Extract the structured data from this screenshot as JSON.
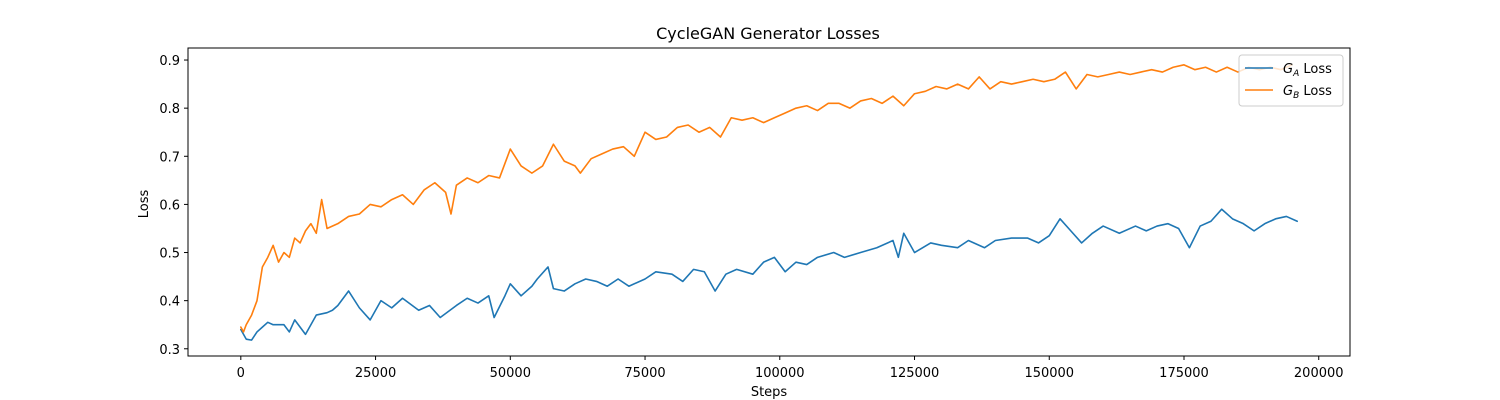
{
  "chart_data": {
    "type": "line",
    "title": "CycleGAN Generator Losses",
    "xlabel": "Steps",
    "ylabel": "Loss",
    "xlim": [
      -9800,
      205800
    ],
    "ylim": [
      0.285,
      0.925
    ],
    "xticks": [
      0,
      25000,
      50000,
      75000,
      100000,
      125000,
      150000,
      175000,
      200000
    ],
    "yticks": [
      0.3,
      0.4,
      0.5,
      0.6,
      0.7,
      0.8,
      0.9
    ],
    "grid": false,
    "legend_position": "upper-right",
    "series": [
      {
        "name": "G_A Loss",
        "legend_base": "G",
        "legend_sub": "A",
        "legend_suffix": " Loss",
        "color": "#1f77b4",
        "points": [
          [
            0,
            0.34
          ],
          [
            1000,
            0.32
          ],
          [
            2000,
            0.318
          ],
          [
            3000,
            0.335
          ],
          [
            4000,
            0.345
          ],
          [
            5000,
            0.355
          ],
          [
            6000,
            0.35
          ],
          [
            8000,
            0.35
          ],
          [
            9000,
            0.335
          ],
          [
            10000,
            0.36
          ],
          [
            12000,
            0.33
          ],
          [
            14000,
            0.37
          ],
          [
            16000,
            0.375
          ],
          [
            17000,
            0.38
          ],
          [
            18000,
            0.39
          ],
          [
            20000,
            0.42
          ],
          [
            22000,
            0.385
          ],
          [
            24000,
            0.36
          ],
          [
            26000,
            0.4
          ],
          [
            28000,
            0.385
          ],
          [
            30000,
            0.405
          ],
          [
            33000,
            0.38
          ],
          [
            35000,
            0.39
          ],
          [
            37000,
            0.365
          ],
          [
            40000,
            0.39
          ],
          [
            42000,
            0.405
          ],
          [
            44000,
            0.395
          ],
          [
            46000,
            0.41
          ],
          [
            47000,
            0.365
          ],
          [
            49000,
            0.41
          ],
          [
            50000,
            0.435
          ],
          [
            52000,
            0.41
          ],
          [
            54000,
            0.43
          ],
          [
            55000,
            0.445
          ],
          [
            57000,
            0.47
          ],
          [
            58000,
            0.425
          ],
          [
            60000,
            0.42
          ],
          [
            62000,
            0.435
          ],
          [
            64000,
            0.445
          ],
          [
            66000,
            0.44
          ],
          [
            68000,
            0.43
          ],
          [
            70000,
            0.445
          ],
          [
            72000,
            0.43
          ],
          [
            75000,
            0.445
          ],
          [
            77000,
            0.46
          ],
          [
            80000,
            0.455
          ],
          [
            82000,
            0.44
          ],
          [
            84000,
            0.465
          ],
          [
            86000,
            0.46
          ],
          [
            88000,
            0.42
          ],
          [
            90000,
            0.455
          ],
          [
            92000,
            0.465
          ],
          [
            95000,
            0.455
          ],
          [
            97000,
            0.48
          ],
          [
            99000,
            0.49
          ],
          [
            101000,
            0.46
          ],
          [
            103000,
            0.48
          ],
          [
            105000,
            0.475
          ],
          [
            107000,
            0.49
          ],
          [
            110000,
            0.5
          ],
          [
            112000,
            0.49
          ],
          [
            115000,
            0.5
          ],
          [
            118000,
            0.51
          ],
          [
            121000,
            0.525
          ],
          [
            122000,
            0.49
          ],
          [
            123000,
            0.54
          ],
          [
            125000,
            0.5
          ],
          [
            128000,
            0.52
          ],
          [
            130000,
            0.515
          ],
          [
            133000,
            0.51
          ],
          [
            135000,
            0.525
          ],
          [
            138000,
            0.51
          ],
          [
            140000,
            0.525
          ],
          [
            143000,
            0.53
          ],
          [
            146000,
            0.53
          ],
          [
            148000,
            0.52
          ],
          [
            150000,
            0.535
          ],
          [
            152000,
            0.57
          ],
          [
            154000,
            0.545
          ],
          [
            156000,
            0.52
          ],
          [
            158000,
            0.54
          ],
          [
            160000,
            0.555
          ],
          [
            163000,
            0.54
          ],
          [
            166000,
            0.555
          ],
          [
            168000,
            0.545
          ],
          [
            170000,
            0.555
          ],
          [
            172000,
            0.56
          ],
          [
            174000,
            0.55
          ],
          [
            176000,
            0.51
          ],
          [
            178000,
            0.555
          ],
          [
            180000,
            0.565
          ],
          [
            182000,
            0.59
          ],
          [
            184000,
            0.57
          ],
          [
            186000,
            0.56
          ],
          [
            188000,
            0.545
          ],
          [
            190000,
            0.56
          ],
          [
            192000,
            0.57
          ],
          [
            194000,
            0.575
          ],
          [
            196000,
            0.565
          ]
        ]
      },
      {
        "name": "G_B Loss",
        "legend_base": "G",
        "legend_sub": "B",
        "legend_suffix": " Loss",
        "color": "#ff7f0e",
        "points": [
          [
            0,
            0.345
          ],
          [
            500,
            0.335
          ],
          [
            1000,
            0.35
          ],
          [
            2000,
            0.37
          ],
          [
            3000,
            0.4
          ],
          [
            4000,
            0.47
          ],
          [
            5000,
            0.49
          ],
          [
            6000,
            0.515
          ],
          [
            7000,
            0.48
          ],
          [
            8000,
            0.5
          ],
          [
            9000,
            0.49
          ],
          [
            10000,
            0.53
          ],
          [
            11000,
            0.52
          ],
          [
            12000,
            0.545
          ],
          [
            13000,
            0.56
          ],
          [
            14000,
            0.54
          ],
          [
            15000,
            0.61
          ],
          [
            16000,
            0.55
          ],
          [
            18000,
            0.56
          ],
          [
            20000,
            0.575
          ],
          [
            22000,
            0.58
          ],
          [
            24000,
            0.6
          ],
          [
            26000,
            0.595
          ],
          [
            28000,
            0.61
          ],
          [
            30000,
            0.62
          ],
          [
            32000,
            0.6
          ],
          [
            34000,
            0.63
          ],
          [
            36000,
            0.645
          ],
          [
            38000,
            0.625
          ],
          [
            39000,
            0.58
          ],
          [
            40000,
            0.64
          ],
          [
            42000,
            0.655
          ],
          [
            44000,
            0.645
          ],
          [
            46000,
            0.66
          ],
          [
            48000,
            0.655
          ],
          [
            50000,
            0.715
          ],
          [
            52000,
            0.68
          ],
          [
            54000,
            0.665
          ],
          [
            56000,
            0.68
          ],
          [
            58000,
            0.725
          ],
          [
            60000,
            0.69
          ],
          [
            62000,
            0.68
          ],
          [
            63000,
            0.665
          ],
          [
            65000,
            0.695
          ],
          [
            67000,
            0.705
          ],
          [
            69000,
            0.715
          ],
          [
            71000,
            0.72
          ],
          [
            73000,
            0.7
          ],
          [
            75000,
            0.75
          ],
          [
            77000,
            0.735
          ],
          [
            79000,
            0.74
          ],
          [
            81000,
            0.76
          ],
          [
            83000,
            0.765
          ],
          [
            85000,
            0.75
          ],
          [
            87000,
            0.76
          ],
          [
            89000,
            0.74
          ],
          [
            91000,
            0.78
          ],
          [
            93000,
            0.775
          ],
          [
            95000,
            0.78
          ],
          [
            97000,
            0.77
          ],
          [
            99000,
            0.78
          ],
          [
            101000,
            0.79
          ],
          [
            103000,
            0.8
          ],
          [
            105000,
            0.805
          ],
          [
            107000,
            0.795
          ],
          [
            109000,
            0.81
          ],
          [
            111000,
            0.81
          ],
          [
            113000,
            0.8
          ],
          [
            115000,
            0.815
          ],
          [
            117000,
            0.82
          ],
          [
            119000,
            0.81
          ],
          [
            121000,
            0.825
          ],
          [
            123000,
            0.805
          ],
          [
            125000,
            0.83
          ],
          [
            127000,
            0.835
          ],
          [
            129000,
            0.845
          ],
          [
            131000,
            0.84
          ],
          [
            133000,
            0.85
          ],
          [
            135000,
            0.84
          ],
          [
            137000,
            0.865
          ],
          [
            139000,
            0.84
          ],
          [
            141000,
            0.855
          ],
          [
            143000,
            0.85
          ],
          [
            145000,
            0.855
          ],
          [
            147000,
            0.86
          ],
          [
            149000,
            0.855
          ],
          [
            151000,
            0.86
          ],
          [
            153000,
            0.875
          ],
          [
            155000,
            0.84
          ],
          [
            157000,
            0.87
          ],
          [
            159000,
            0.865
          ],
          [
            161000,
            0.87
          ],
          [
            163000,
            0.875
          ],
          [
            165000,
            0.87
          ],
          [
            167000,
            0.875
          ],
          [
            169000,
            0.88
          ],
          [
            171000,
            0.875
          ],
          [
            173000,
            0.885
          ],
          [
            175000,
            0.89
          ],
          [
            177000,
            0.88
          ],
          [
            179000,
            0.885
          ],
          [
            181000,
            0.875
          ],
          [
            183000,
            0.885
          ],
          [
            185000,
            0.875
          ],
          [
            187000,
            0.885
          ],
          [
            189000,
            0.88
          ],
          [
            191000,
            0.885
          ],
          [
            193000,
            0.88
          ],
          [
            195000,
            0.89
          ]
        ]
      }
    ]
  }
}
